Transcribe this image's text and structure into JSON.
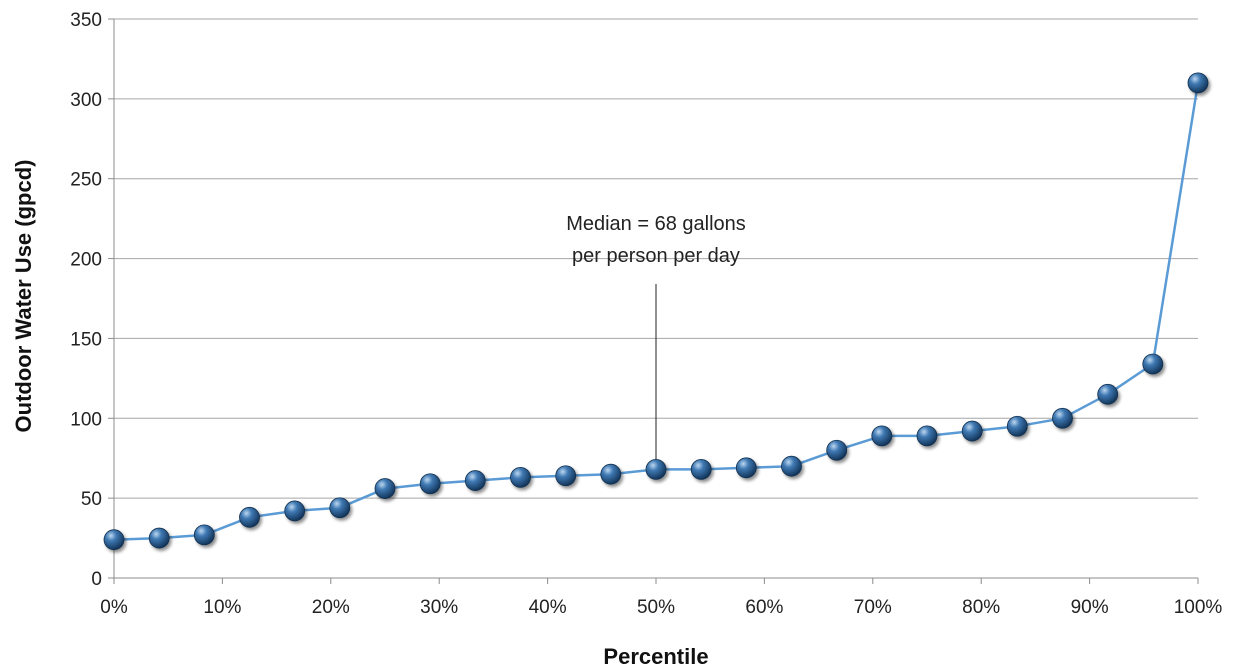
{
  "chart_data": {
    "type": "line",
    "title": "",
    "xlabel": "Percentile",
    "ylabel": "Outdoor Water Use (gpcd)",
    "xlim": [
      0,
      100
    ],
    "ylim": [
      0,
      350
    ],
    "grid": true,
    "x_ticks": [
      {
        "value": 0,
        "label": "0%"
      },
      {
        "value": 10,
        "label": "10%"
      },
      {
        "value": 20,
        "label": "20%"
      },
      {
        "value": 30,
        "label": "30%"
      },
      {
        "value": 40,
        "label": "40%"
      },
      {
        "value": 50,
        "label": "50%"
      },
      {
        "value": 60,
        "label": "60%"
      },
      {
        "value": 70,
        "label": "70%"
      },
      {
        "value": 80,
        "label": "80%"
      },
      {
        "value": 90,
        "label": "90%"
      },
      {
        "value": 100,
        "label": "100%"
      }
    ],
    "y_ticks": [
      {
        "value": 0,
        "label": "0"
      },
      {
        "value": 50,
        "label": "50"
      },
      {
        "value": 100,
        "label": "100"
      },
      {
        "value": 150,
        "label": "150"
      },
      {
        "value": 200,
        "label": "200"
      },
      {
        "value": 250,
        "label": "250"
      },
      {
        "value": 300,
        "label": "300"
      },
      {
        "value": 350,
        "label": "350"
      }
    ],
    "series": [
      {
        "color": "#5b9bd5",
        "marker_color": "#1f4e79",
        "points": [
          {
            "x": 0,
            "y": 24
          },
          {
            "x": 4.17,
            "y": 25
          },
          {
            "x": 8.33,
            "y": 27
          },
          {
            "x": 12.5,
            "y": 38
          },
          {
            "x": 16.67,
            "y": 42
          },
          {
            "x": 20.83,
            "y": 44
          },
          {
            "x": 25,
            "y": 56
          },
          {
            "x": 29.17,
            "y": 59
          },
          {
            "x": 33.33,
            "y": 61
          },
          {
            "x": 37.5,
            "y": 63
          },
          {
            "x": 41.67,
            "y": 64
          },
          {
            "x": 45.83,
            "y": 65
          },
          {
            "x": 50,
            "y": 68
          },
          {
            "x": 54.17,
            "y": 68
          },
          {
            "x": 58.33,
            "y": 69
          },
          {
            "x": 62.5,
            "y": 70
          },
          {
            "x": 66.67,
            "y": 80
          },
          {
            "x": 70.83,
            "y": 89
          },
          {
            "x": 75,
            "y": 89
          },
          {
            "x": 79.17,
            "y": 92
          },
          {
            "x": 83.33,
            "y": 95
          },
          {
            "x": 87.5,
            "y": 100
          },
          {
            "x": 91.67,
            "y": 115
          },
          {
            "x": 95.83,
            "y": 134
          },
          {
            "x": 100,
            "y": 310
          }
        ]
      }
    ],
    "annotations": [
      {
        "lines": [
          "Median = 68 gallons",
          "per person per day"
        ],
        "x": 50,
        "y": 68
      }
    ]
  }
}
